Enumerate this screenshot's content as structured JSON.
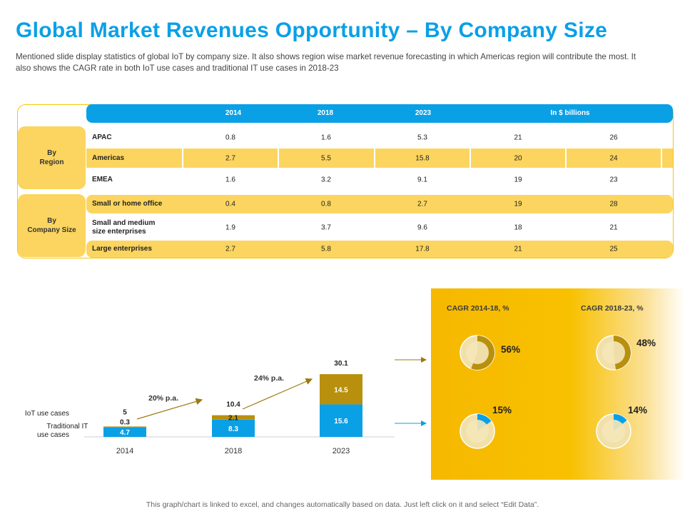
{
  "title": "Global Market Revenues Opportunity – By Company Size",
  "subtitle": "Mentioned slide display statistics of global IoT by company size. It also shows region wise market revenue forecasting in which Americas region will contribute the most. It also shows the CAGR rate in both IoT use cases and traditional IT use cases in 2018-23",
  "table": {
    "headers": [
      "2014",
      "2018",
      "2023",
      "In $ billions"
    ],
    "groups": [
      {
        "label": "By\nRegion"
      },
      {
        "label": "By\nCompany Size"
      }
    ],
    "rows": [
      {
        "label": "APAC",
        "values": [
          "0.8",
          "1.6",
          "5.3",
          "21",
          "26"
        ]
      },
      {
        "label": "Americas",
        "values": [
          "2.7",
          "5.5",
          "15.8",
          "20",
          "24"
        ]
      },
      {
        "label": "EMEA",
        "values": [
          "1.6",
          "3.2",
          "9.1",
          "19",
          "23"
        ]
      },
      {
        "label": "Small or home office",
        "values": [
          "0.4",
          "0.8",
          "2.7",
          "19",
          "28"
        ]
      },
      {
        "label": "Small and medium\nsize enterprises",
        "values": [
          "1.9",
          "3.7",
          "9.6",
          "18",
          "21"
        ]
      },
      {
        "label": "Large enterprises",
        "values": [
          "2.7",
          "5.8",
          "17.8",
          "21",
          "25"
        ]
      }
    ]
  },
  "chart_data": [
    {
      "type": "bar",
      "stacked": true,
      "categories": [
        "2014",
        "2018",
        "2023"
      ],
      "series": [
        {
          "name": "Traditional IT use cases",
          "values": [
            4.7,
            8.3,
            15.6
          ],
          "color": "#0aa0e6"
        },
        {
          "name": "IoT use cases",
          "values": [
            0.3,
            2.1,
            14.5
          ],
          "color": "#b8900e"
        }
      ],
      "totals": [
        "5",
        "10.4",
        "30.1"
      ],
      "legend": [
        "IoT use cases",
        "Traditional IT\nuse cases"
      ],
      "growth_annotations": [
        "20% p.a.",
        "24% p.a."
      ]
    },
    {
      "type": "pie",
      "title": "CAGR 2014-18, %",
      "slices": [
        {
          "name": "IoT use cases",
          "value": 56
        },
        {
          "name": "Traditional IT use cases",
          "value": 15
        }
      ]
    },
    {
      "type": "pie",
      "title": "CAGR 2018-23, %",
      "slices": [
        {
          "name": "IoT use cases",
          "value": 48
        },
        {
          "name": "Traditional IT use cases",
          "value": 14
        }
      ]
    }
  ],
  "cagr_labels": {
    "p1": "56%",
    "p2": "48%",
    "p3": "15%",
    "p4": "14%"
  },
  "colors": {
    "accent_blue": "#0aa0e6",
    "accent_yellow": "#fbd55f",
    "gold": "#b8900e",
    "panel_yellow": "#f8c100"
  },
  "footnote": "This graph/chart is linked to excel, and changes automatically based on data. Just left click on it and select “Edit Data”."
}
